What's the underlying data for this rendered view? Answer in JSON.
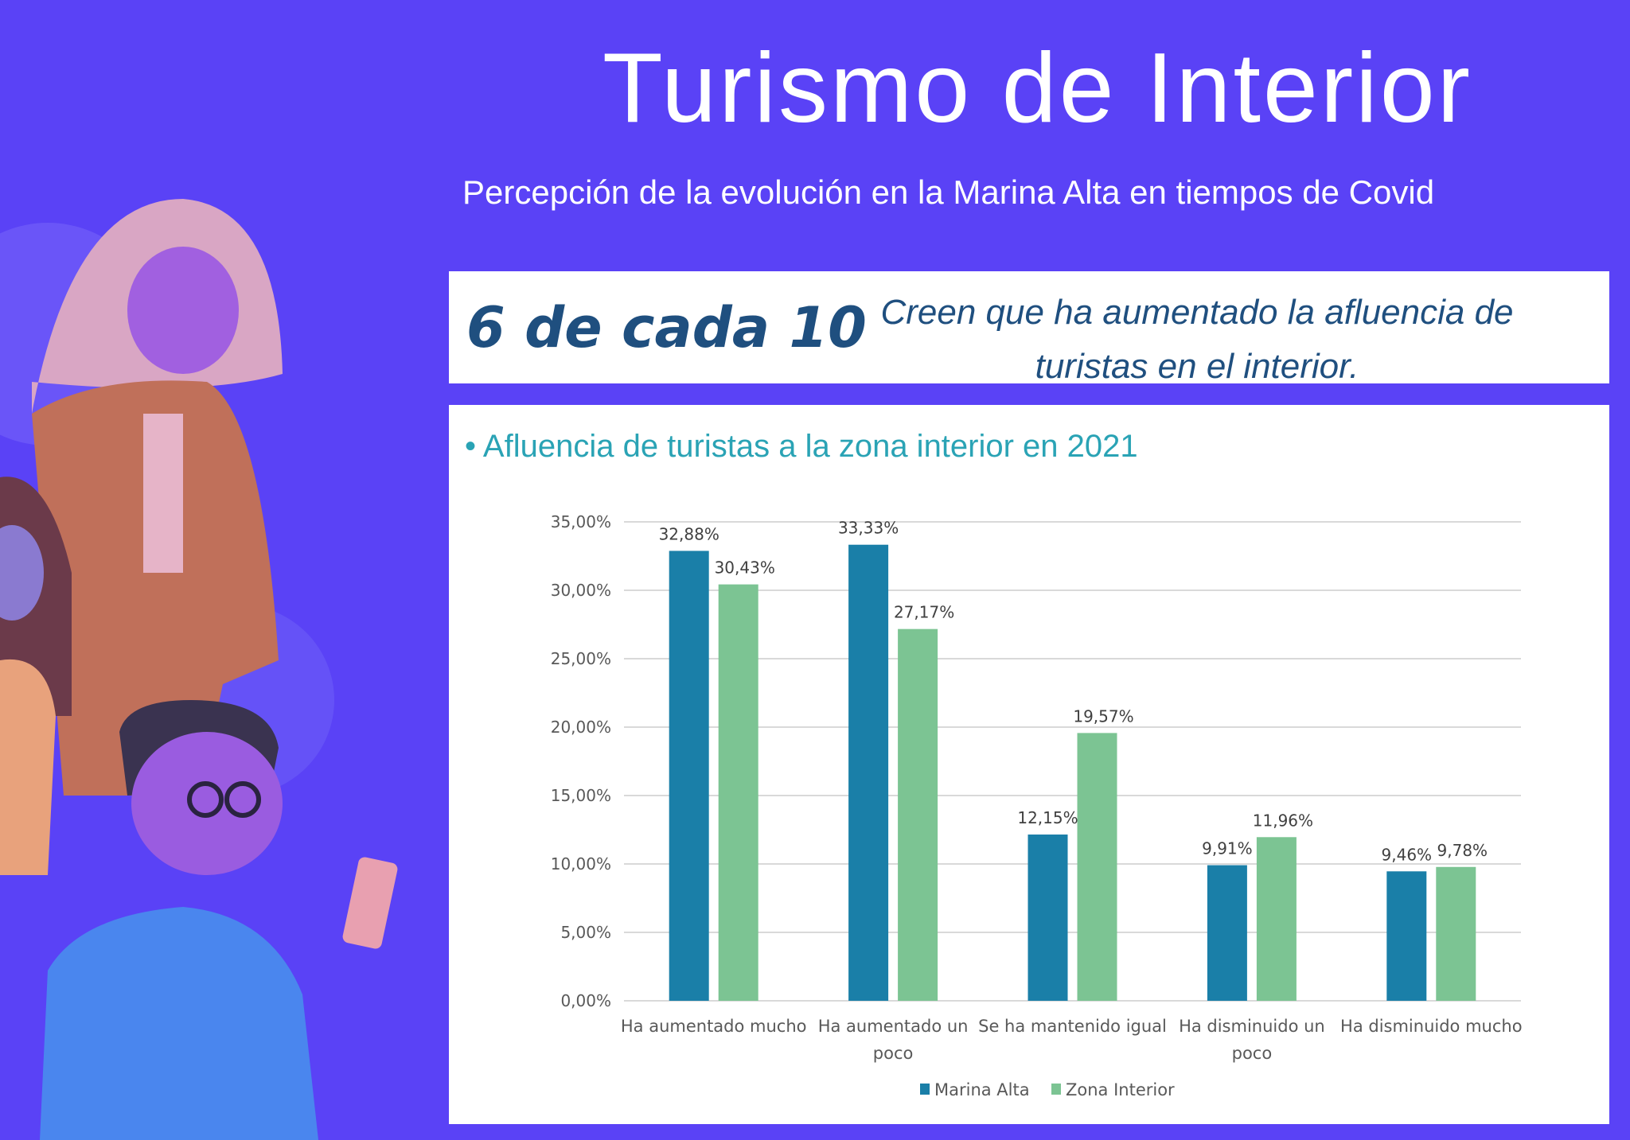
{
  "header": {
    "title": "Turismo de Interior",
    "subtitle": "Percepción de la evolución en la Marina Alta en tiempos de Covid"
  },
  "highlight": {
    "stat": "6 de cada 10",
    "text": "Creen que ha aumentado la afluencia de turistas en el interior."
  },
  "chart_data": {
    "type": "bar",
    "title": "• Afluencia de turistas a la zona interior en 2021",
    "categories": [
      [
        "Ha aumentado mucho"
      ],
      [
        "Ha aumentado un",
        "poco"
      ],
      [
        "Se ha mantenido igual"
      ],
      [
        "Ha disminuido un",
        "poco"
      ],
      [
        "Ha disminuido mucho"
      ]
    ],
    "series": [
      {
        "name": "Marina Alta",
        "color": "#1a7fa8",
        "values": [
          32.88,
          33.33,
          12.15,
          9.91,
          9.46
        ],
        "labels": [
          "32,88%",
          "33,33%",
          "12,15%",
          "9,91%",
          "9,46%"
        ]
      },
      {
        "name": "Zona Interior",
        "color": "#7cc493",
        "values": [
          30.43,
          27.17,
          19.57,
          11.96,
          9.78
        ],
        "labels": [
          "30,43%",
          "27,17%",
          "19,57%",
          "11,96%",
          "9,78%"
        ]
      }
    ],
    "ylim": [
      0,
      35
    ],
    "yticks": [
      "0,00%",
      "5,00%",
      "10,00%",
      "15,00%",
      "20,00%",
      "25,00%",
      "30,00%",
      "35,00%"
    ],
    "grid": true,
    "legend": "bottom"
  },
  "colors": {
    "background": "#5a42f6",
    "stat": "#1f4f7f",
    "chart_title": "#2aa3b5"
  }
}
